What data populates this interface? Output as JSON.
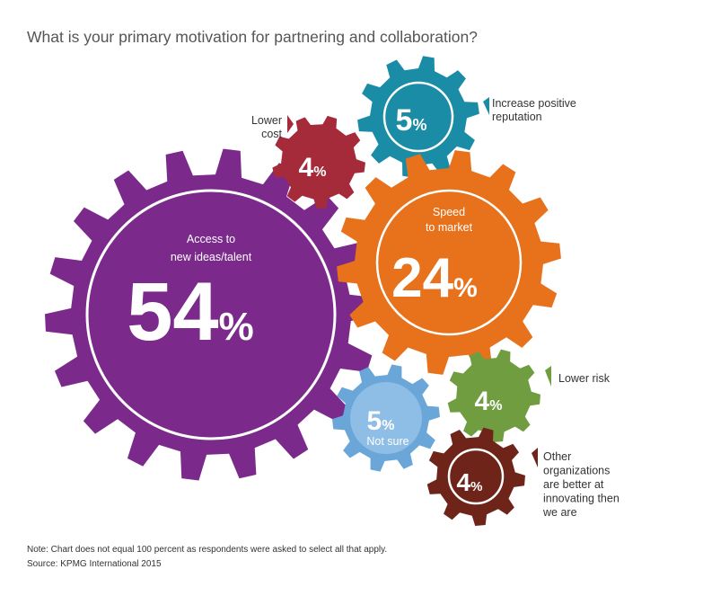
{
  "title": "What is your primary motivation for partnering and collaboration?",
  "note": "Note: Chart does not equal 100 percent as respondents were asked to select all that apply.",
  "source": "Source: KPMG International 2015",
  "chart_data": {
    "type": "pie",
    "title": "What is your primary motivation for partnering and collaboration?",
    "unit": "%",
    "categories": [
      "Access to new ideas/talent",
      "Speed to market",
      "Increase positive reputation",
      "Lower cost",
      "Not sure",
      "Lower risk",
      "Other organizations are better at innovating then we are"
    ],
    "values": [
      54,
      24,
      5,
      4,
      5,
      4,
      4
    ],
    "items": [
      {
        "id": "access",
        "value": "54",
        "value_label": "54%",
        "color": "#7b2a8c",
        "label_lines": [
          "Access to",
          "new ideas/talent"
        ]
      },
      {
        "id": "speed",
        "value": "24",
        "value_label": "24%",
        "color": "#e8711c",
        "label_lines": [
          "Speed",
          "to market"
        ]
      },
      {
        "id": "reputation",
        "value": "5",
        "value_label": "5%",
        "color": "#1b8ca6",
        "label_lines": [
          "Increase positive",
          "reputation"
        ]
      },
      {
        "id": "cost",
        "value": "4",
        "value_label": "4%",
        "color": "#a52a3a",
        "label_lines": [
          "Lower",
          "cost"
        ]
      },
      {
        "id": "notsure",
        "value": "5",
        "value_label": "5%",
        "color": "#6aa6d8",
        "label_lines": [
          "Not sure"
        ]
      },
      {
        "id": "risk",
        "value": "4",
        "value_label": "4%",
        "color": "#6f9d3f",
        "label_lines": [
          "Lower risk"
        ]
      },
      {
        "id": "other",
        "value": "4",
        "value_label": "4%",
        "color": "#6e2419",
        "label_lines": [
          "Other",
          "organizations",
          "are better at",
          "innovating then",
          "we are"
        ]
      }
    ]
  }
}
